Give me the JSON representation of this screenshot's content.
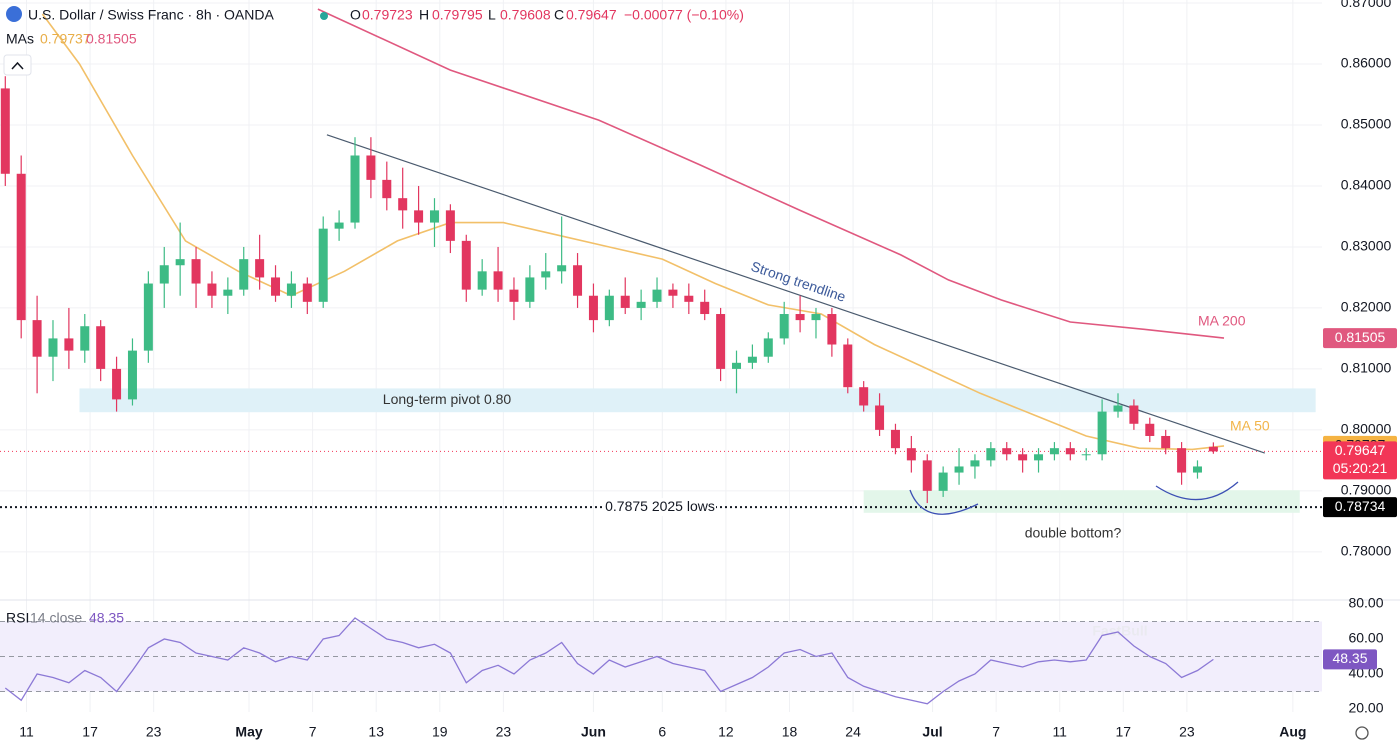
{
  "header": {
    "symbol": "U.S. Dollar / Swiss Franc · 8h · OANDA",
    "o": "O",
    "h": "H",
    "l": "L",
    "c": "C",
    "change": "−0.00077 (−0.10%)",
    "mas": "MAs"
  },
  "chart_data": {
    "type": "candlestick",
    "x": [
      -4,
      -1,
      2,
      5,
      8,
      11,
      14,
      17,
      20,
      23,
      26,
      29,
      32,
      35,
      38,
      41,
      44,
      47,
      50,
      53,
      56,
      59,
      62,
      65,
      68,
      71,
      74,
      77,
      80,
      83,
      86,
      89,
      92,
      95,
      98,
      101,
      104,
      107,
      110,
      113,
      116,
      119,
      122,
      125,
      128,
      131,
      134,
      137,
      140,
      143,
      146,
      149,
      152,
      155,
      158,
      161,
      164,
      167,
      170,
      173,
      176,
      179,
      182,
      185,
      188,
      191,
      194,
      197,
      200,
      203,
      206,
      209,
      212,
      215,
      218,
      221,
      224
    ],
    "open": [
      0.856,
      0.842,
      0.818,
      0.812,
      0.815,
      0.813,
      0.817,
      0.81,
      0.805,
      0.813,
      0.824,
      0.827,
      0.828,
      0.824,
      0.822,
      0.823,
      0.828,
      0.825,
      0.822,
      0.824,
      0.821,
      0.833,
      0.834,
      0.845,
      0.841,
      0.838,
      0.836,
      0.834,
      0.836,
      0.831,
      0.823,
      0.826,
      0.823,
      0.821,
      0.825,
      0.826,
      0.827,
      0.822,
      0.818,
      0.822,
      0.82,
      0.821,
      0.823,
      0.822,
      0.821,
      0.819,
      0.81,
      0.811,
      0.812,
      0.815,
      0.819,
      0.818,
      0.819,
      0.814,
      0.807,
      0.804,
      0.8,
      0.797,
      0.795,
      0.79,
      0.793,
      0.794,
      0.795,
      0.797,
      0.796,
      0.795,
      0.796,
      0.797,
      0.796,
      0.796,
      0.803,
      0.804,
      0.801,
      0.799,
      0.797,
      0.793,
      0.79723
    ],
    "high": [
      0.858,
      0.845,
      0.822,
      0.818,
      0.82,
      0.819,
      0.818,
      0.812,
      0.815,
      0.826,
      0.83,
      0.834,
      0.83,
      0.826,
      0.825,
      0.83,
      0.832,
      0.827,
      0.826,
      0.825,
      0.835,
      0.836,
      0.848,
      0.848,
      0.844,
      0.843,
      0.84,
      0.838,
      0.837,
      0.832,
      0.828,
      0.83,
      0.825,
      0.827,
      0.829,
      0.835,
      0.829,
      0.824,
      0.823,
      0.825,
      0.823,
      0.825,
      0.824,
      0.824,
      0.823,
      0.82,
      0.813,
      0.814,
      0.816,
      0.821,
      0.822,
      0.82,
      0.82,
      0.815,
      0.808,
      0.806,
      0.801,
      0.799,
      0.796,
      0.794,
      0.797,
      0.796,
      0.798,
      0.798,
      0.797,
      0.797,
      0.798,
      0.798,
      0.797,
      0.805,
      0.806,
      0.805,
      0.802,
      0.8,
      0.798,
      0.795,
      0.79795
    ],
    "low": [
      0.84,
      0.815,
      0.806,
      0.808,
      0.81,
      0.811,
      0.808,
      0.803,
      0.804,
      0.811,
      0.82,
      0.822,
      0.82,
      0.82,
      0.819,
      0.822,
      0.823,
      0.821,
      0.82,
      0.819,
      0.82,
      0.831,
      0.833,
      0.838,
      0.836,
      0.833,
      0.832,
      0.83,
      0.829,
      0.821,
      0.822,
      0.821,
      0.818,
      0.82,
      0.823,
      0.824,
      0.82,
      0.816,
      0.817,
      0.819,
      0.818,
      0.82,
      0.82,
      0.819,
      0.818,
      0.808,
      0.806,
      0.81,
      0.811,
      0.814,
      0.816,
      0.815,
      0.812,
      0.806,
      0.803,
      0.799,
      0.796,
      0.793,
      0.788,
      0.789,
      0.791,
      0.792,
      0.794,
      0.795,
      0.793,
      0.793,
      0.795,
      0.795,
      0.795,
      0.795,
      0.802,
      0.8,
      0.798,
      0.796,
      0.791,
      0.792,
      0.79608
    ],
    "close": [
      0.842,
      0.818,
      0.812,
      0.815,
      0.813,
      0.817,
      0.81,
      0.805,
      0.813,
      0.824,
      0.827,
      0.828,
      0.824,
      0.822,
      0.823,
      0.828,
      0.825,
      0.822,
      0.824,
      0.821,
      0.833,
      0.834,
      0.845,
      0.841,
      0.838,
      0.836,
      0.834,
      0.836,
      0.831,
      0.823,
      0.826,
      0.823,
      0.821,
      0.825,
      0.826,
      0.827,
      0.822,
      0.818,
      0.822,
      0.82,
      0.821,
      0.823,
      0.822,
      0.821,
      0.819,
      0.81,
      0.811,
      0.812,
      0.815,
      0.819,
      0.818,
      0.819,
      0.814,
      0.807,
      0.804,
      0.8,
      0.797,
      0.795,
      0.79,
      0.793,
      0.794,
      0.795,
      0.797,
      0.796,
      0.795,
      0.796,
      0.797,
      0.796,
      0.796,
      0.803,
      0.804,
      0.801,
      0.799,
      0.797,
      0.793,
      0.794,
      0.79647
    ],
    "up_color": "#3dbb85",
    "down_color": "#e2365f",
    "xlim": [
      -5,
      244.5
    ],
    "xticks": [
      {
        "value": 0,
        "label": "11"
      },
      {
        "value": 12,
        "label": "17"
      },
      {
        "value": 24,
        "label": "23"
      },
      {
        "value": 42,
        "label": "May"
      },
      {
        "value": 54,
        "label": "7"
      },
      {
        "value": 66,
        "label": "13"
      },
      {
        "value": 78,
        "label": "19"
      },
      {
        "value": 90,
        "label": "23"
      },
      {
        "value": 107,
        "label": "Jun"
      },
      {
        "value": 120,
        "label": "6"
      },
      {
        "value": 132,
        "label": "12"
      },
      {
        "value": 144,
        "label": "18"
      },
      {
        "value": 156,
        "label": "24"
      },
      {
        "value": 171,
        "label": "Jul"
      },
      {
        "value": 183,
        "label": "7"
      },
      {
        "value": 195,
        "label": "11"
      },
      {
        "value": 207,
        "label": "17"
      },
      {
        "value": 219,
        "label": "23"
      },
      {
        "value": 239,
        "label": "Aug"
      }
    ],
    "ylim": [
      0.7721,
      0.8705
    ],
    "yticks": [
      {
        "value": 0.78,
        "label": "0.78000"
      },
      {
        "value": 0.79,
        "label": "0.79000"
      },
      {
        "value": 0.8,
        "label": "0.80000"
      },
      {
        "value": 0.81,
        "label": "0.81000"
      },
      {
        "value": 0.82,
        "label": "0.82000"
      },
      {
        "value": 0.83,
        "label": "0.83000"
      },
      {
        "value": 0.84,
        "label": "0.84000"
      },
      {
        "value": 0.85,
        "label": "0.85000"
      },
      {
        "value": 0.86,
        "label": "0.86000"
      },
      {
        "value": 0.87,
        "label": "0.87000"
      }
    ],
    "grid": true,
    "ma_series": [
      {
        "name": "MA 50",
        "color": "#f2c069",
        "tag_color": "#f5b342",
        "x": [
          3,
          10,
          20,
          30,
          40,
          50,
          60,
          70,
          80,
          90,
          100,
          110,
          120,
          130,
          140,
          150,
          160,
          170,
          180,
          190,
          200,
          210,
          220,
          226
        ],
        "values": [
          0.8682,
          0.86,
          0.845,
          0.831,
          0.826,
          0.822,
          0.826,
          0.831,
          0.834,
          0.834,
          0.832,
          0.83,
          0.828,
          0.824,
          0.8205,
          0.819,
          0.814,
          0.81,
          0.806,
          0.8025,
          0.799,
          0.797,
          0.7968,
          0.79737
        ]
      },
      {
        "name": "MA 200",
        "color": "#e0587f",
        "tag_color": "#e0587f",
        "x": [
          55,
          80,
          108,
          127,
          146,
          165,
          174,
          184,
          197,
          212,
          226
        ],
        "values": [
          0.869,
          0.859,
          0.8508,
          0.8435,
          0.836,
          0.8287,
          0.8246,
          0.8213,
          0.8177,
          0.8164,
          0.81505
        ]
      }
    ],
    "close_tag_color": "#f23657",
    "countdown": "05:20:21",
    "zones": [
      {
        "label": "Long-term pivot 0.80",
        "color": "#dff1f8",
        "xlim": [
          10,
          243.3
        ],
        "ylim": [
          0.8029,
          0.8068
        ]
      },
      {
        "color": "#e3f6ea",
        "xlim": [
          158,
          240.3
        ],
        "ylim": [
          0.7864,
          0.7901
        ]
      }
    ],
    "trendline": {
      "label": "Strong trendline",
      "color": "#4a5a6e",
      "x": [
        56.7,
        233.7
      ],
      "y": [
        0.8484,
        0.7962
      ]
    },
    "lows_line": {
      "value": 0.78734,
      "label": "0.7875 2025 lows"
    },
    "annotation": "double bottom?",
    "rsi": {
      "title": "RSI",
      "params": "14 close",
      "color": "#8c79d6",
      "tag_color": "#7e57c2",
      "values": [
        32,
        25,
        40,
        38,
        35,
        42,
        38,
        30,
        42,
        55,
        60,
        58,
        52,
        50,
        48,
        55,
        52,
        47,
        50,
        48,
        60,
        62,
        72,
        66,
        60,
        58,
        55,
        57,
        52,
        35,
        42,
        45,
        40,
        48,
        52,
        58,
        46,
        40,
        48,
        44,
        47,
        50,
        46,
        44,
        42,
        30,
        34,
        38,
        44,
        52,
        54,
        50,
        52,
        38,
        33,
        30,
        27,
        25,
        23,
        30,
        36,
        40,
        48,
        46,
        44,
        47,
        48,
        47,
        48,
        62,
        64,
        56,
        50,
        46,
        38,
        42,
        48.35
      ],
      "ylim": [
        18.3,
        82.3
      ],
      "yticks": [
        {
          "value": 20,
          "label": "20.00"
        },
        {
          "value": 40,
          "label": "40.00"
        },
        {
          "value": 60,
          "label": "60.00"
        },
        {
          "value": 80,
          "label": "80.00"
        }
      ],
      "bands": [
        30,
        70
      ],
      "midline": 50
    },
    "watermark": "FastBull"
  }
}
